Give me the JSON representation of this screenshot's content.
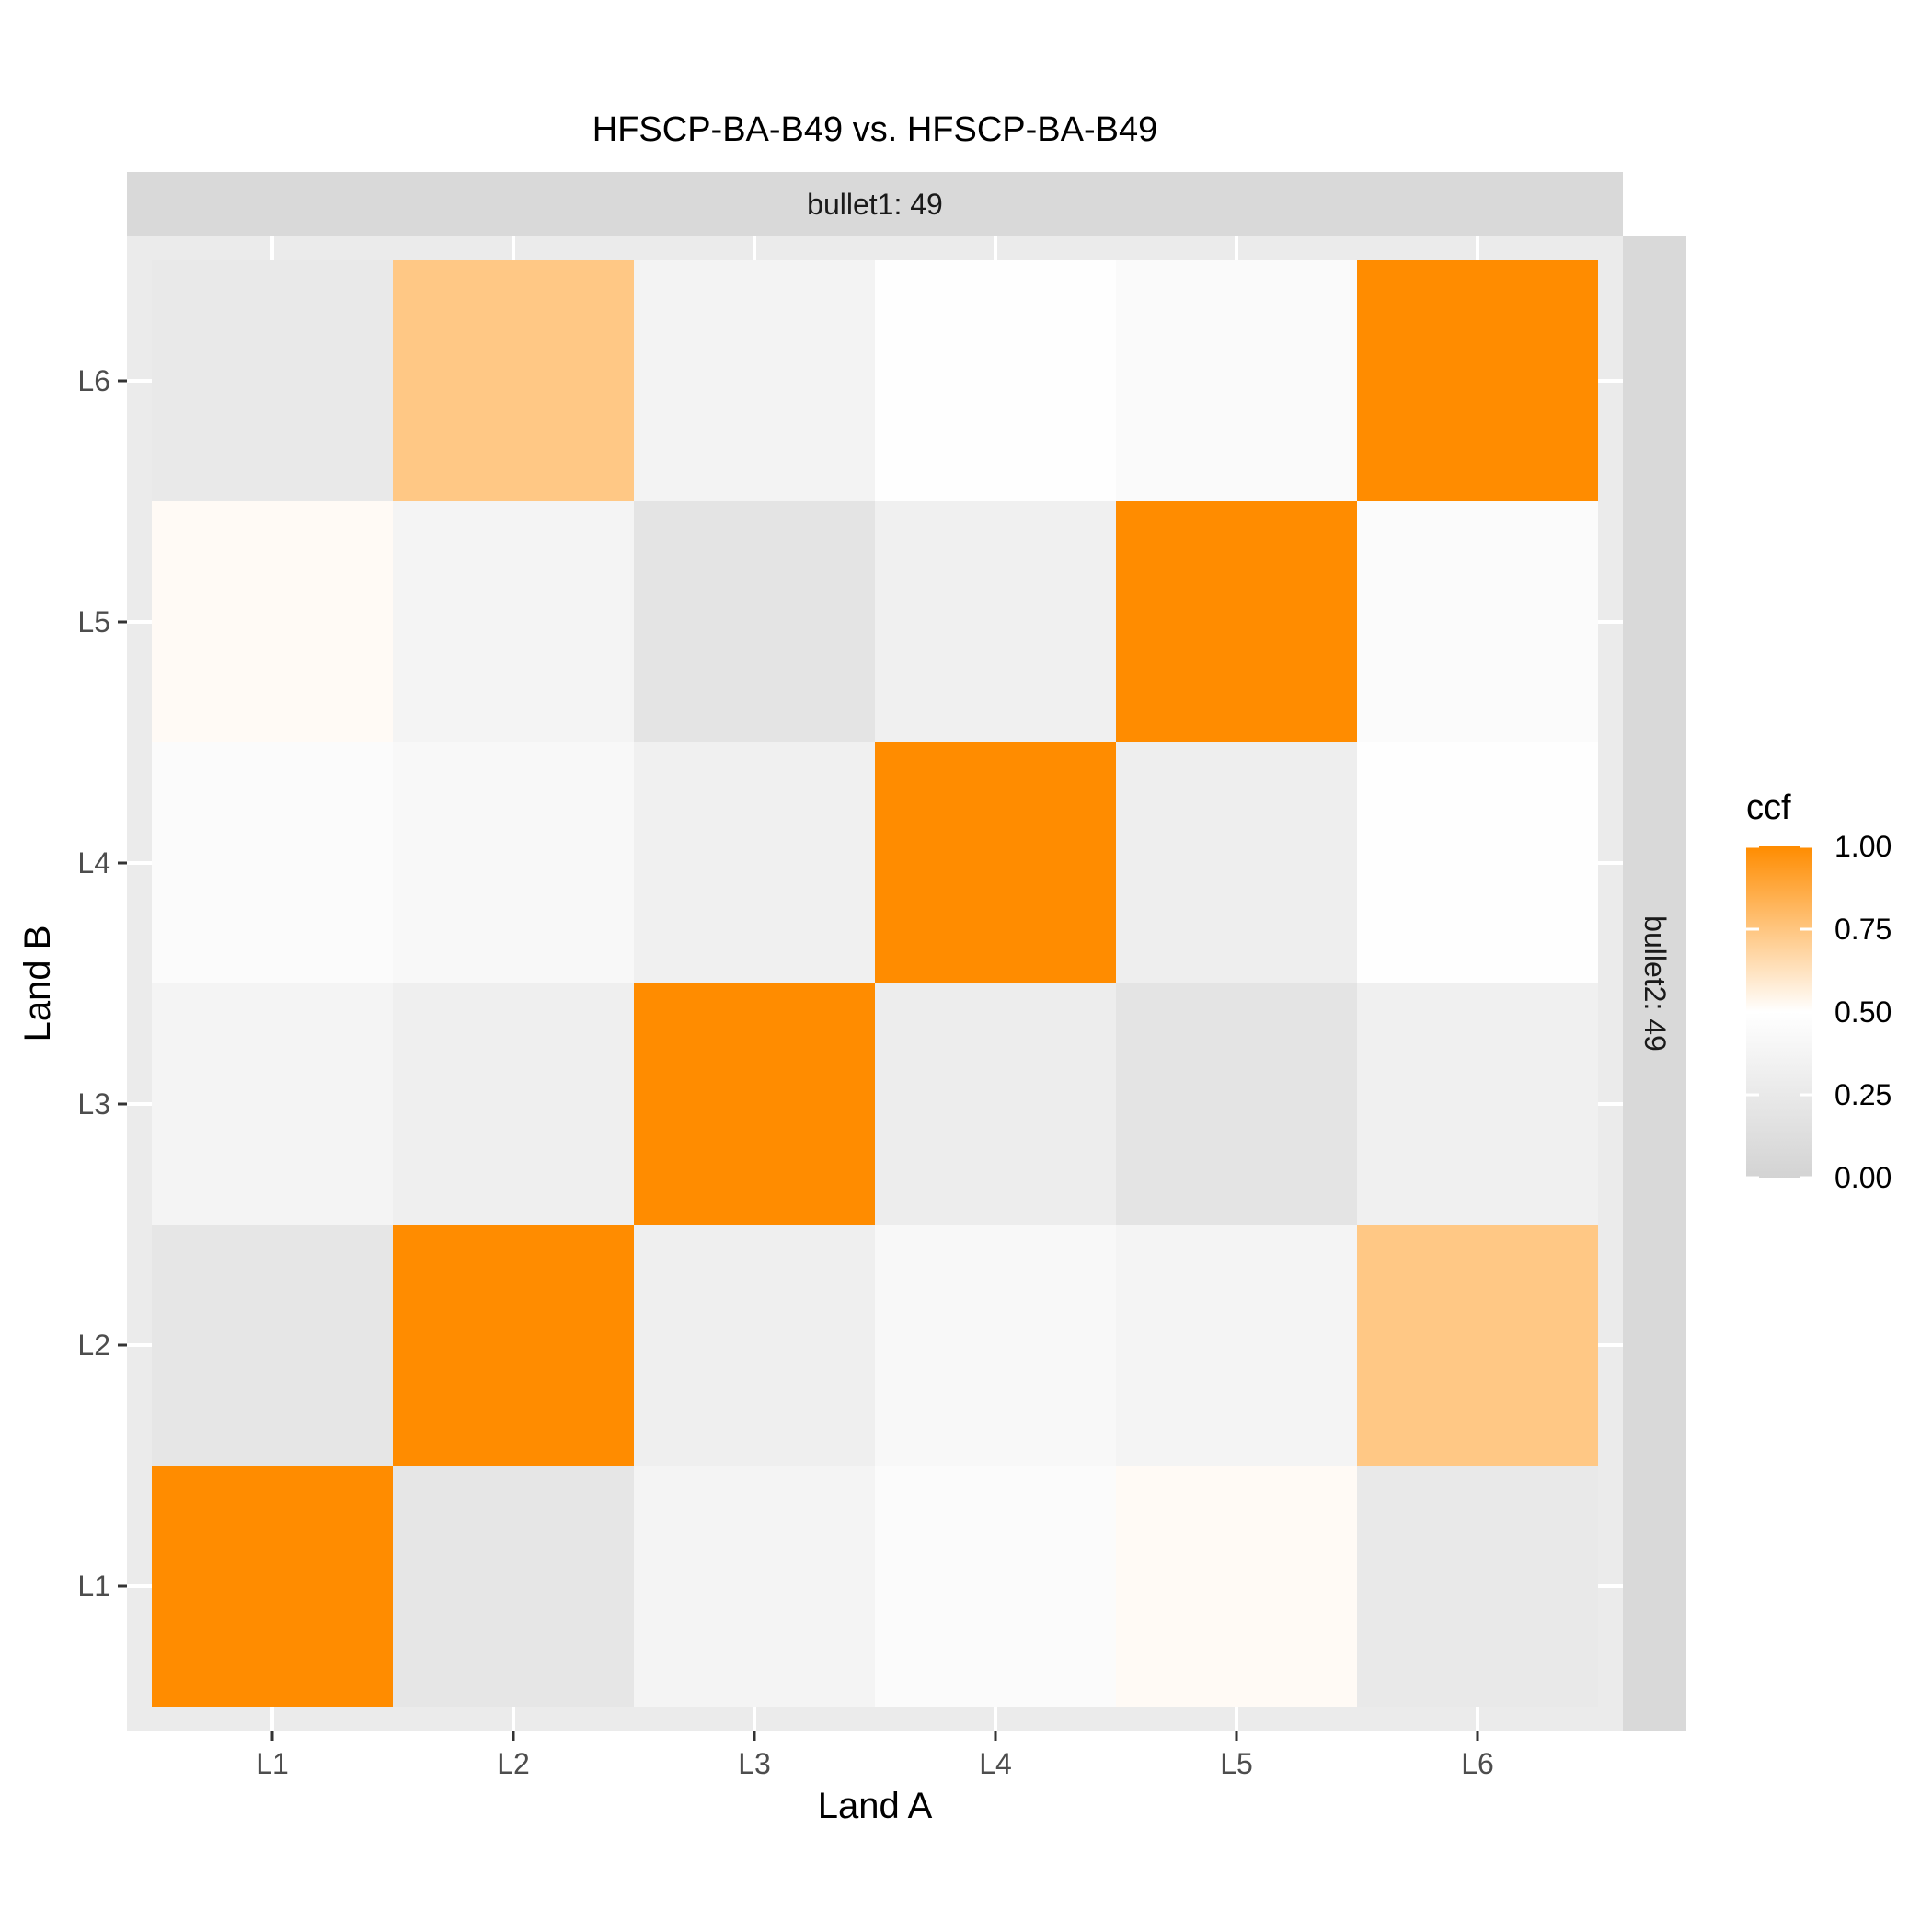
{
  "chart_data": {
    "type": "heatmap",
    "title": "HFSCP-BA-B49 vs. HFSCP-BA-B49",
    "xlabel": "Land A",
    "ylabel": "Land B",
    "facet_top": "bullet1: 49",
    "facet_right": "bullet2: 49",
    "x": [
      "L1",
      "L2",
      "L3",
      "L4",
      "L5",
      "L6"
    ],
    "y": [
      "L1",
      "L2",
      "L3",
      "L4",
      "L5",
      "L6"
    ],
    "values": [
      [
        1.0,
        0.22,
        0.38,
        0.46,
        0.52,
        0.25
      ],
      [
        0.22,
        1.0,
        0.32,
        0.42,
        0.37,
        0.74
      ],
      [
        0.37,
        0.32,
        1.0,
        0.3,
        0.19,
        0.33
      ],
      [
        0.46,
        0.42,
        0.33,
        1.0,
        0.31,
        0.49
      ],
      [
        0.52,
        0.37,
        0.19,
        0.33,
        1.0,
        0.45
      ],
      [
        0.25,
        0.74,
        0.36,
        0.49,
        0.44,
        1.0
      ]
    ],
    "legend": {
      "title": "ccf",
      "position": "right",
      "range": [
        0,
        1
      ],
      "ticks": [
        "0.00",
        "0.25",
        "0.50",
        "0.75",
        "1.00"
      ],
      "low_color": "#d3d3d3",
      "mid_color": "#ffffff",
      "high_color": "#ff8c00"
    },
    "grid": true,
    "panel_background": "#ebebeb",
    "strip_background": "#d9d9d9"
  }
}
